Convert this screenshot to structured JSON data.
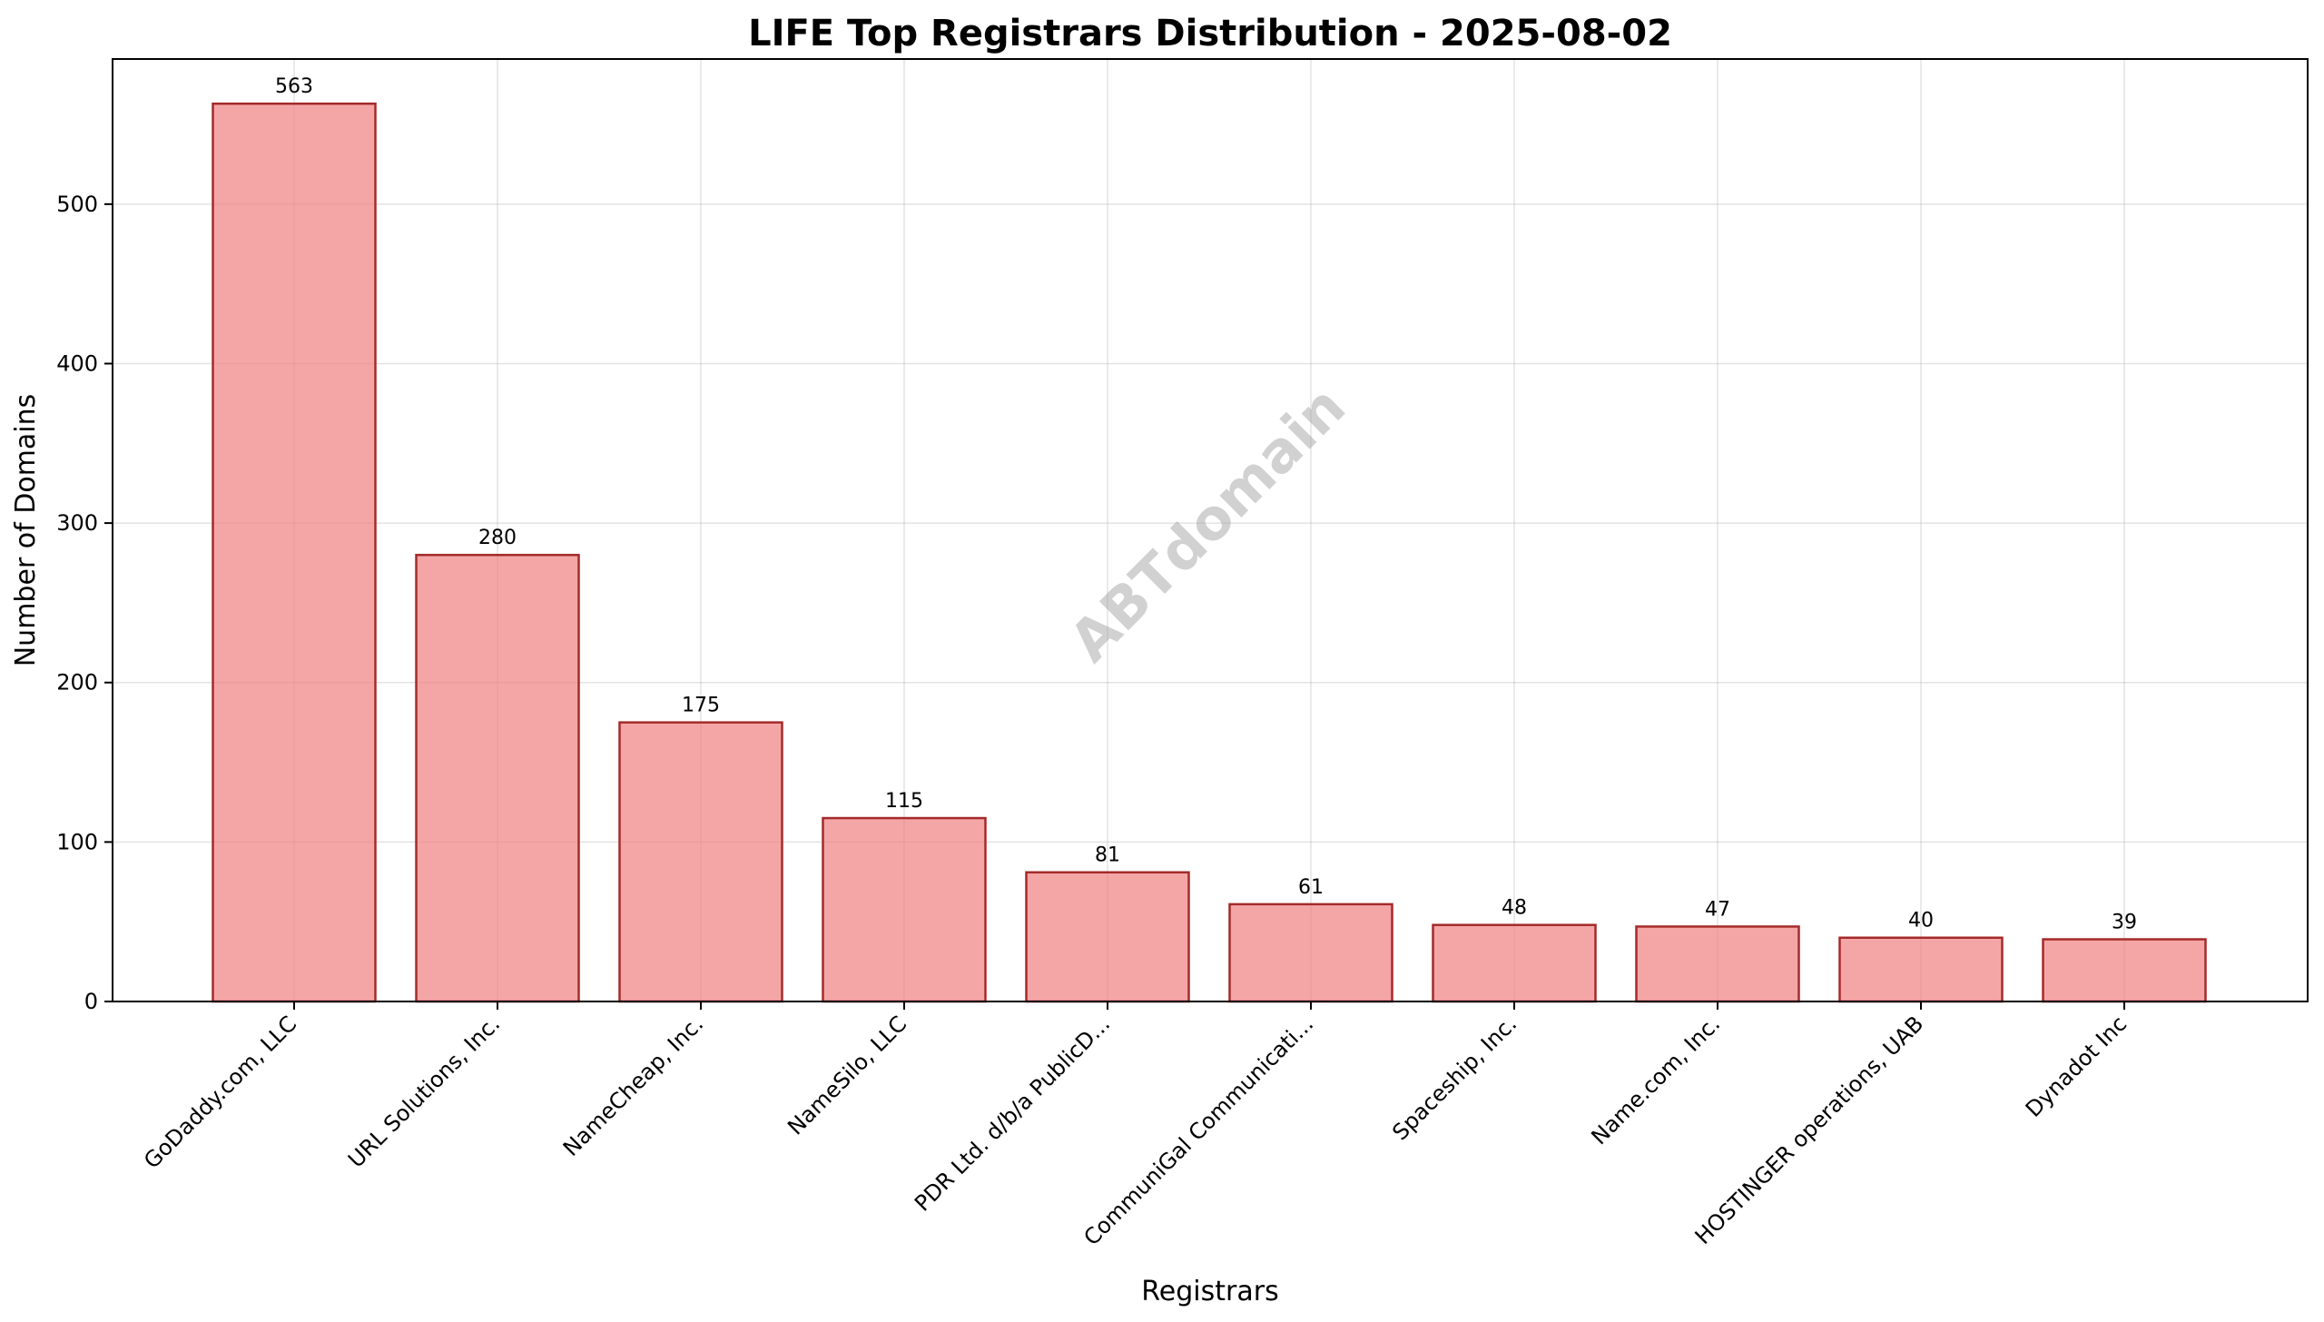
{
  "chart_data": {
    "type": "bar",
    "title": "LIFE Top Registrars Distribution - 2025-08-02",
    "xlabel": "Registrars",
    "ylabel": "Number of Domains",
    "categories": [
      "GoDaddy.com, LLC",
      "URL Solutions, Inc.",
      "NameCheap, Inc.",
      "NameSilo, LLC",
      "PDR Ltd. d/b/a PublicD...",
      "CommuniGal Communicati...",
      "Spaceship, Inc.",
      "Name.com, Inc.",
      "HOSTINGER operations, UAB",
      "Dynadot Inc"
    ],
    "values": [
      563,
      280,
      175,
      115,
      81,
      61,
      48,
      47,
      40,
      39
    ],
    "ylim": [
      0,
      591
    ],
    "yticks": [
      0,
      100,
      200,
      300,
      400,
      500
    ],
    "grid": true,
    "watermark": "ABTdomain",
    "colors": {
      "bar_fill": "#f08080",
      "bar_edge": "#a52a2a"
    }
  }
}
